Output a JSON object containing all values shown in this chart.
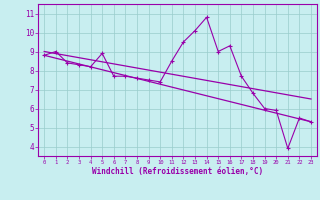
{
  "x_data": [
    0,
    1,
    2,
    3,
    4,
    5,
    6,
    7,
    8,
    9,
    10,
    11,
    12,
    13,
    14,
    15,
    16,
    17,
    18,
    19,
    20,
    21,
    22,
    23
  ],
  "y_data": [
    8.8,
    9.0,
    8.4,
    8.3,
    8.2,
    8.9,
    7.7,
    7.7,
    7.6,
    7.5,
    7.4,
    8.5,
    9.5,
    10.1,
    10.8,
    9.0,
    9.3,
    7.7,
    6.8,
    6.0,
    5.9,
    3.9,
    5.5,
    5.3
  ],
  "trend1_start": 9.0,
  "trend1_end": 6.5,
  "trend2_start": 8.8,
  "trend2_end": 5.3,
  "bg_color": "#c8eef0",
  "line_color": "#9900aa",
  "grid_color": "#99cccc",
  "xlabel": "Windchill (Refroidissement éolien,°C)",
  "xlim": [
    -0.5,
    23.5
  ],
  "ylim": [
    3.5,
    11.5
  ],
  "yticks": [
    4,
    5,
    6,
    7,
    8,
    9,
    10,
    11
  ],
  "xticks": [
    0,
    1,
    2,
    3,
    4,
    5,
    6,
    7,
    8,
    9,
    10,
    11,
    12,
    13,
    14,
    15,
    16,
    17,
    18,
    19,
    20,
    21,
    22,
    23
  ],
  "tick_color": "#9900aa",
  "border_color": "#9900aa",
  "marker": "+",
  "markersize": 4
}
